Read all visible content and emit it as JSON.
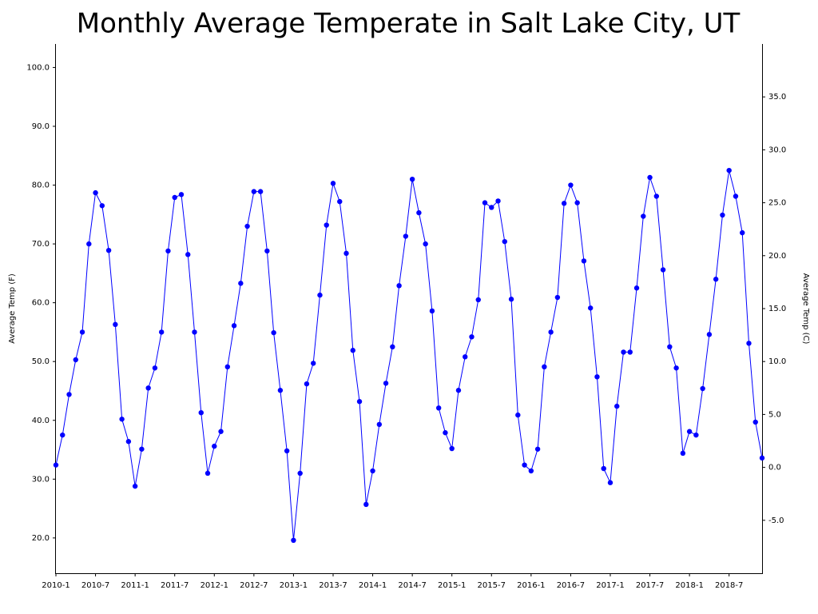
{
  "chart_data": {
    "type": "line",
    "title": "Monthly Average Temperate in Salt Lake City, UT",
    "y_label": "Average Temp (F)",
    "y2_label": "Average Temp (C)",
    "color": "#0000ff",
    "categories": [
      "2010-1",
      null,
      null,
      null,
      null,
      null,
      "2010-7",
      null,
      null,
      null,
      null,
      null,
      "2011-1",
      null,
      null,
      null,
      null,
      null,
      "2011-7",
      null,
      null,
      null,
      null,
      null,
      "2012-1",
      null,
      null,
      null,
      null,
      null,
      "2012-7",
      null,
      null,
      null,
      null,
      null,
      "2013-1",
      null,
      null,
      null,
      null,
      null,
      "2013-7",
      null,
      null,
      null,
      null,
      null,
      "2014-1",
      null,
      null,
      null,
      null,
      null,
      "2014-7",
      null,
      null,
      null,
      null,
      null,
      "2015-1",
      null,
      null,
      null,
      null,
      null,
      "2015-7",
      null,
      null,
      null,
      null,
      null,
      "2016-1",
      null,
      null,
      null,
      null,
      null,
      "2016-7",
      null,
      null,
      null,
      null,
      null,
      "2017-1",
      null,
      null,
      null,
      null,
      null,
      "2017-7",
      null,
      null,
      null,
      null,
      null,
      "2018-1",
      null,
      null,
      null,
      null,
      null,
      "2018-7",
      null,
      null,
      null,
      null,
      null
    ],
    "values": [
      32.4,
      37.5,
      44.4,
      50.3,
      55.0,
      70.0,
      78.7,
      76.5,
      68.9,
      56.3,
      40.2,
      36.4,
      28.8,
      35.1,
      45.5,
      48.9,
      55.0,
      68.8,
      77.9,
      78.4,
      68.2,
      55.0,
      41.3,
      31.0,
      35.6,
      38.1,
      49.1,
      56.1,
      63.3,
      73.0,
      78.9,
      78.9,
      68.8,
      54.9,
      45.1,
      34.8,
      19.6,
      31.0,
      46.2,
      49.7,
      61.3,
      73.2,
      80.3,
      77.2,
      68.4,
      51.9,
      43.2,
      25.7,
      31.4,
      39.3,
      46.3,
      52.5,
      62.9,
      71.3,
      81.0,
      75.3,
      70.0,
      58.6,
      42.1,
      37.9,
      35.2,
      45.1,
      50.8,
      54.2,
      60.5,
      77.0,
      76.2,
      77.3,
      70.4,
      60.6,
      40.9,
      32.4,
      31.4,
      35.1,
      49.1,
      55.0,
      60.9,
      76.9,
      80.0,
      77.0,
      67.1,
      59.1,
      47.4,
      31.8,
      29.4,
      42.4,
      51.6,
      51.6,
      62.5,
      74.7,
      81.3,
      78.1,
      65.6,
      52.5,
      48.9,
      34.4,
      38.1,
      37.5,
      45.4,
      54.6,
      64.0,
      74.9,
      82.5,
      78.1,
      71.9,
      53.1,
      39.7,
      33.6
    ],
    "ylim": [
      14,
      104
    ],
    "yticks": [
      {
        "value": 20,
        "label": "20.0"
      },
      {
        "value": 30,
        "label": "30.0"
      },
      {
        "value": 40,
        "label": "40.0"
      },
      {
        "value": 50,
        "label": "50.0"
      },
      {
        "value": 60,
        "label": "60.0"
      },
      {
        "value": 70,
        "label": "70.0"
      },
      {
        "value": 80,
        "label": "80.0"
      },
      {
        "value": 90,
        "label": "90.0"
      },
      {
        "value": 100,
        "label": "100.0"
      }
    ],
    "y2lim": [
      -10,
      40
    ],
    "y2ticks": [
      {
        "value": -5,
        "label": "-5.0"
      },
      {
        "value": 0,
        "label": "0.0"
      },
      {
        "value": 5,
        "label": "5.0"
      },
      {
        "value": 10,
        "label": "10.0"
      },
      {
        "value": 15,
        "label": "15.0"
      },
      {
        "value": 20,
        "label": "20.0"
      },
      {
        "value": 25,
        "label": "25.0"
      },
      {
        "value": 30,
        "label": "30.0"
      },
      {
        "value": 35,
        "label": "35.0"
      }
    ]
  }
}
